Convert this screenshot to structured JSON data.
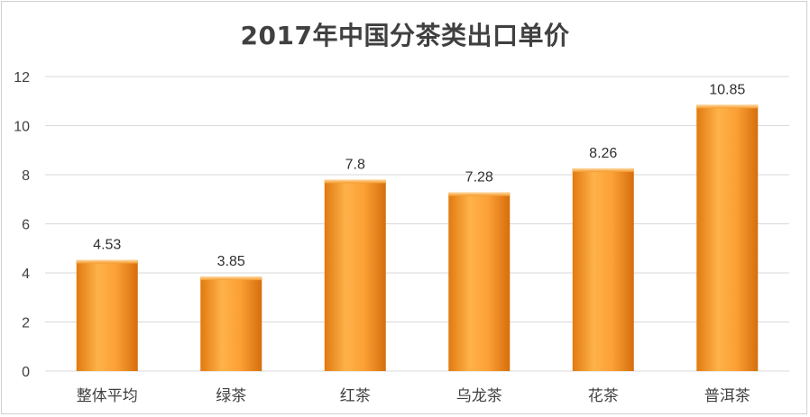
{
  "chart_data": {
    "type": "bar",
    "title": "2017年中国分茶类出口单价",
    "xlabel": "",
    "ylabel": "",
    "categories": [
      "整体平均",
      "绿茶",
      "红茶",
      "乌龙茶",
      "花茶",
      "普洱茶"
    ],
    "values": [
      4.53,
      3.85,
      7.8,
      7.28,
      8.26,
      10.85
    ],
    "data_labels": [
      "4.53",
      "3.85",
      "7.8",
      "7.28",
      "8.26",
      "10.85"
    ],
    "ylim": [
      0,
      12
    ],
    "yticks": [
      0,
      2,
      4,
      6,
      8,
      10,
      12
    ],
    "grid": true,
    "legend": "none",
    "colors": {
      "bar_light": "#FFB347",
      "bar_mid": "#F7931E",
      "bar_dark": "#D9730D",
      "grid": "#D9D9D9"
    }
  }
}
